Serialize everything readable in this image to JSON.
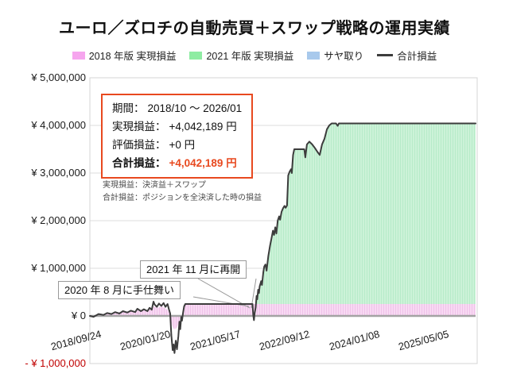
{
  "title": "ユーロ／ズロチの自動売買＋スワップ戦略の運用実績",
  "legend": [
    {
      "label": "2018 年版 実現損益",
      "swatch": "#f6a5ee",
      "type": "area"
    },
    {
      "label": "2021 年版 実現損益",
      "swatch": "#8eeca2",
      "type": "area"
    },
    {
      "label": "サヤ取り",
      "swatch": "#a8c9ec",
      "type": "area"
    },
    {
      "label": "合計損益",
      "swatch": "#3c3c3c",
      "type": "line"
    }
  ],
  "info_box": {
    "border_color": "#e8491f",
    "rows": [
      {
        "label": "期間：",
        "value": "2018/10 ～ 2026/01",
        "strong": false
      },
      {
        "label": "実現損益：",
        "value": "+4,042,189 円",
        "strong": false
      },
      {
        "label": "評価損益：",
        "value": "+0 円",
        "strong": false
      },
      {
        "label": "合計損益：",
        "value": "+4,042,189 円",
        "strong": true,
        "value_color": "#e8491f"
      }
    ]
  },
  "notes": [
    "実現損益：決済益＋スワップ",
    "合計損益：ポジションを全決済した時の損益"
  ],
  "callouts": [
    {
      "text": "2020 年 8 月に手仕舞い"
    },
    {
      "text": "2021 年 11 月に再開"
    }
  ],
  "chart_data": {
    "type": "area",
    "title": "ユーロ／ズロチの自動売買＋スワップ戦略の運用実績",
    "grid": true,
    "legend_position": "top",
    "colors": {
      "grid": "#dcdcdc",
      "zero_line": "#a3a3a3",
      "border": "#d4d4d4",
      "total_line": "#3c3c3c",
      "pink_fill": "#f8d9f3",
      "pink_stripe": "#efc2e9",
      "green_fill": "#ccf2d8",
      "green_stripe": "#b7ebc9",
      "negative_label": "#c00000"
    },
    "y_axis": {
      "range": [
        -1000000,
        5000000
      ],
      "ticks": [
        {
          "label": "¥ 5,000,000",
          "value": 5000000
        },
        {
          "label": "¥ 4,000,000",
          "value": 4000000
        },
        {
          "label": "¥ 3,000,000",
          "value": 3000000
        },
        {
          "label": "¥ 2,000,000",
          "value": 2000000
        },
        {
          "label": "¥ 1,000,000",
          "value": 1000000
        },
        {
          "label": "¥ 0",
          "value": 0
        },
        {
          "label": "- ¥ 1,000,000",
          "value": -1000000,
          "color": "#c00000"
        }
      ]
    },
    "x_axis": {
      "unit": "days since first data point",
      "range_days": [
        0,
        2680
      ],
      "ticks": [
        {
          "label": "2018/09/24",
          "day": 0
        },
        {
          "label": "2020/01/20",
          "day": 483
        },
        {
          "label": "2021/05/17",
          "day": 966
        },
        {
          "label": "2022/09/12",
          "day": 1449
        },
        {
          "label": "2024/01/08",
          "day": 1932
        },
        {
          "label": "2025/05/05",
          "day": 2415
        }
      ]
    },
    "series": [
      {
        "name": "2018 年版 実現損益",
        "type": "area",
        "fill": "pink",
        "points": [
          [
            0,
            0
          ],
          [
            60,
            20000
          ],
          [
            120,
            50000
          ],
          [
            180,
            70000
          ],
          [
            240,
            90000
          ],
          [
            300,
            100000
          ],
          [
            360,
            120000
          ],
          [
            420,
            130000
          ],
          [
            442,
            200000
          ],
          [
            470,
            170000
          ],
          [
            500,
            200000
          ],
          [
            525,
            160000
          ],
          [
            542,
            120000
          ],
          [
            552,
            60000
          ],
          [
            560,
            -50000
          ],
          [
            570,
            -200000
          ],
          [
            585,
            -280000
          ],
          [
            600,
            -260000
          ],
          [
            615,
            -180000
          ],
          [
            625,
            -80000
          ],
          [
            635,
            -20000
          ],
          [
            648,
            60000
          ],
          [
            655,
            180000
          ],
          [
            663,
            250000
          ],
          [
            2680,
            250000
          ]
        ]
      },
      {
        "name": "2021 年版 実現損益",
        "type": "area",
        "fill": "green",
        "base_value": 250000,
        "start_day": 1158,
        "top_follows": "合計損益"
      },
      {
        "name": "サヤ取り",
        "type": "area",
        "fill": "blue",
        "points": []
      },
      {
        "name": "合計損益",
        "type": "line",
        "points": [
          [
            0,
            0
          ],
          [
            25,
            -20000
          ],
          [
            60,
            40000
          ],
          [
            95,
            20000
          ],
          [
            120,
            60000
          ],
          [
            150,
            40000
          ],
          [
            175,
            80000
          ],
          [
            205,
            50000
          ],
          [
            230,
            100000
          ],
          [
            260,
            70000
          ],
          [
            285,
            110000
          ],
          [
            315,
            80000
          ],
          [
            330,
            150000
          ],
          [
            355,
            100000
          ],
          [
            375,
            140000
          ],
          [
            400,
            100000
          ],
          [
            415,
            170000
          ],
          [
            430,
            130000
          ],
          [
            442,
            300000
          ],
          [
            450,
            240000
          ],
          [
            465,
            190000
          ],
          [
            480,
            260000
          ],
          [
            497,
            210000
          ],
          [
            512,
            270000
          ],
          [
            525,
            190000
          ],
          [
            540,
            250000
          ],
          [
            549,
            140000
          ],
          [
            558,
            50000
          ],
          [
            566,
            -400000
          ],
          [
            575,
            -720000
          ],
          [
            582,
            -600000
          ],
          [
            588,
            -780000
          ],
          [
            597,
            -520000
          ],
          [
            605,
            -700000
          ],
          [
            615,
            -420000
          ],
          [
            622,
            -120000
          ],
          [
            628,
            -280000
          ],
          [
            635,
            -20000
          ],
          [
            640,
            -100000
          ],
          [
            648,
            80000
          ],
          [
            655,
            200000
          ],
          [
            663,
            250000
          ],
          [
            1130,
            250000
          ],
          [
            1135,
            20000
          ],
          [
            1140,
            -90000
          ],
          [
            1145,
            60000
          ],
          [
            1152,
            180000
          ],
          [
            1158,
            420000
          ],
          [
            1163,
            350000
          ],
          [
            1169,
            550000
          ],
          [
            1175,
            480000
          ],
          [
            1180,
            620000
          ],
          [
            1190,
            730000
          ],
          [
            1196,
            650000
          ],
          [
            1205,
            920000
          ],
          [
            1212,
            1040000
          ],
          [
            1220,
            1080000
          ],
          [
            1228,
            950000
          ],
          [
            1240,
            1260000
          ],
          [
            1252,
            1480000
          ],
          [
            1262,
            1630000
          ],
          [
            1272,
            1790000
          ],
          [
            1280,
            1700000
          ],
          [
            1288,
            1860000
          ],
          [
            1296,
            1730000
          ],
          [
            1305,
            2000000
          ],
          [
            1315,
            2090000
          ],
          [
            1322,
            2020000
          ],
          [
            1332,
            2190000
          ],
          [
            1342,
            2260000
          ],
          [
            1352,
            2310000
          ],
          [
            1360,
            2270000
          ],
          [
            1370,
            2320000
          ],
          [
            1378,
            2950000
          ],
          [
            1388,
            3030000
          ],
          [
            1398,
            3080000
          ],
          [
            1403,
            3000000
          ],
          [
            1412,
            3380000
          ],
          [
            1420,
            3500000
          ],
          [
            1490,
            3500000
          ],
          [
            1497,
            3330000
          ],
          [
            1508,
            3600000
          ],
          [
            1525,
            3660000
          ],
          [
            1545,
            3600000
          ],
          [
            1565,
            3520000
          ],
          [
            1580,
            3450000
          ],
          [
            1597,
            3380000
          ],
          [
            1613,
            3600000
          ],
          [
            1630,
            3720000
          ],
          [
            1647,
            3920000
          ],
          [
            1663,
            4000000
          ],
          [
            1680,
            4042189
          ],
          [
            1710,
            4042189
          ],
          [
            1722,
            3990000
          ],
          [
            1730,
            4042189
          ],
          [
            2680,
            4042189
          ]
        ]
      }
    ],
    "annotations": [
      {
        "text": "2020 年 8 月に手仕舞い",
        "points_to_day": 1145
      },
      {
        "text": "2021 年 11 月に再開",
        "points_to_day": 1140
      }
    ],
    "summary": {
      "period": "2018/10 ～ 2026/01",
      "realized_pl_yen": 4042189,
      "unrealized_pl_yen": 0,
      "total_pl_yen": 4042189
    }
  }
}
